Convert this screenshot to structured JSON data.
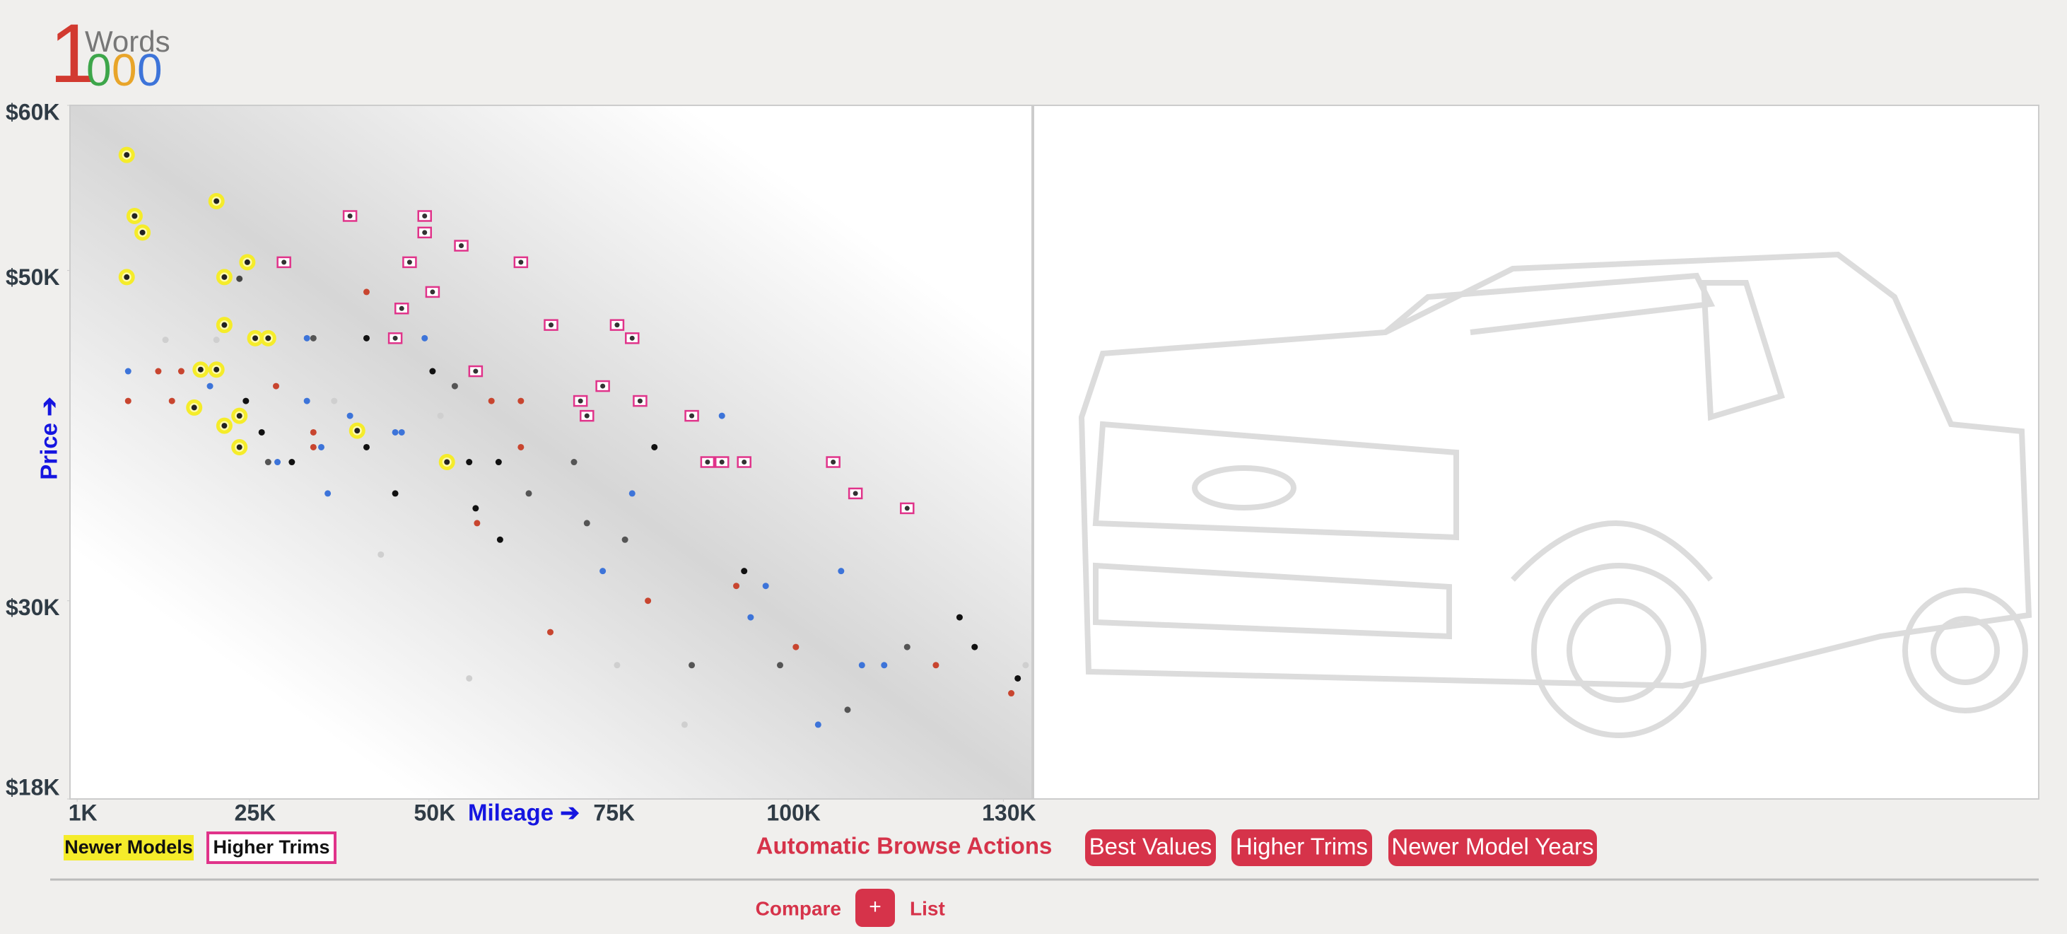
{
  "logo": {
    "one": "1",
    "word": "Words",
    "zeros": [
      "0",
      "0",
      "0"
    ]
  },
  "chart_data": {
    "type": "scatter",
    "x_label": "Mileage ➔",
    "y_label": "Price ➔",
    "xlim": [
      0,
      134000
    ],
    "ylim": [
      18000,
      60000
    ],
    "xticks": [
      {
        "value": 1000,
        "label": "1K"
      },
      {
        "value": 25000,
        "label": "25K"
      },
      {
        "value": 50000,
        "label": "50K"
      },
      {
        "value": 75000,
        "label": "75K"
      },
      {
        "value": 100000,
        "label": "100K"
      },
      {
        "value": 130000,
        "label": "130K"
      }
    ],
    "yticks": [
      {
        "value": 60000,
        "label": "$60K"
      },
      {
        "value": 50000,
        "label": "$50K"
      },
      {
        "value": 30000,
        "label": "$30K"
      },
      {
        "value": 18000,
        "label": "$18K"
      }
    ],
    "series": [
      {
        "x": [
          8100,
          8100,
          13300,
          12300,
          14200,
          15500,
          19500,
          20400,
          23600,
          24500,
          26700,
          28700,
          28900,
          27600,
          30900,
          33000,
          33900,
          33000,
          33900,
          33900,
          35000,
          36800,
          35900,
          39000,
          41300,
          41300,
          41300,
          43300,
          45300,
          46200,
          45300,
          49400,
          50500,
          51600,
          53600,
          55600,
          55600,
          56500,
          56700,
          58700,
          59700,
          59900,
          62800,
          62800,
          63900,
          66900,
          70200,
          72000,
          74200,
          76200,
          77300,
          78300,
          80500,
          81400,
          85600,
          86600,
          90800,
          92800,
          93900,
          94800,
          96900,
          98900,
          101100,
          104200,
          107400,
          108300,
          110300,
          113400,
          116600,
          120600,
          123900,
          126000,
          131100,
          132000,
          133100
        ],
        "values": [
          43900,
          42100,
          45800,
          43900,
          42100,
          43900,
          43000,
          45800,
          49500,
          42100,
          40200,
          43000,
          38400,
          38400,
          38400,
          45900,
          45900,
          42100,
          40200,
          39300,
          39300,
          42100,
          36500,
          41200,
          48700,
          45900,
          39300,
          32800,
          40200,
          40200,
          36500,
          45900,
          43900,
          41200,
          43000,
          38400,
          25300,
          35600,
          34700,
          42100,
          38400,
          33700,
          42100,
          39300,
          36500,
          28100,
          38400,
          34700,
          31800,
          26100,
          33700,
          36500,
          30000,
          39300,
          22500,
          26100,
          41200,
          30900,
          31800,
          29000,
          30900,
          26100,
          27200,
          22500,
          31800,
          23400,
          26100,
          26100,
          27200,
          26100,
          29000,
          27200,
          24400,
          25300,
          26100
        ],
        "colors": [
          "#3d74d9",
          "#c8452f",
          "#cfcfcf",
          "#c8452f",
          "#c8452f",
          "#c8452f",
          "#3d74d9",
          "#cfcfcf",
          "#444444",
          "#111111",
          "#111111",
          "#c8452f",
          "#3d74d9",
          "#555555",
          "#111111",
          "#3d74d9",
          "#555555",
          "#3d74d9",
          "#c8452f",
          "#c8452f",
          "#3d74d9",
          "#cfcfcf",
          "#3d74d9",
          "#3d74d9",
          "#c8452f",
          "#111111",
          "#111111",
          "#cfcfcf",
          "#3d74d9",
          "#3d74d9",
          "#111111",
          "#3d74d9",
          "#111111",
          "#cfcfcf",
          "#555555",
          "#111111",
          "#cfcfcf",
          "#111111",
          "#c8452f",
          "#c8452f",
          "#111111",
          "#111111",
          "#c8452f",
          "#c8452f",
          "#555555",
          "#c8452f",
          "#555555",
          "#555555",
          "#3d74d9",
          "#cfcfcf",
          "#555555",
          "#3d74d9",
          "#c8452f",
          "#111111",
          "#cfcfcf",
          "#555555",
          "#3d74d9",
          "#c8452f",
          "#111111",
          "#3d74d9",
          "#3d74d9",
          "#555555",
          "#c8452f",
          "#3d74d9",
          "#3d74d9",
          "#555555",
          "#3d74d9",
          "#3d74d9",
          "#555555",
          "#c8452f",
          "#111111",
          "#111111",
          "#c8452f",
          "#111111",
          "#cfcfcf"
        ]
      },
      {
        "name": "Newer Models",
        "color": "#f5ec2a",
        "x": [
          7900,
          9000,
          10100,
          7900,
          20400,
          21500,
          21500,
          24700,
          27600,
          25800,
          18200,
          20400,
          17300,
          21500,
          23600,
          40000,
          52500,
          23600
        ],
        "values": [
          57000,
          53300,
          52300,
          49600,
          54200,
          49600,
          46700,
          50500,
          45900,
          45900,
          44000,
          44000,
          41700,
          40600,
          41200,
          40300,
          38400,
          39300
        ]
      },
      {
        "name": "Higher Trims",
        "color": "#e0338a",
        "x": [
          39000,
          49400,
          49400,
          54500,
          29800,
          47300,
          62800,
          50500,
          46200,
          45300,
          67000,
          76200,
          78300,
          56500,
          74200,
          71100,
          79400,
          72000,
          86600,
          88800,
          90800,
          93900,
          106300,
          109400,
          116600
        ],
        "values": [
          53300,
          53300,
          52300,
          51500,
          50500,
          50500,
          50500,
          48700,
          47700,
          45900,
          46700,
          46700,
          45900,
          43900,
          43000,
          42100,
          42100,
          41200,
          41200,
          38400,
          38400,
          38400,
          38400,
          36500,
          35600
        ]
      }
    ]
  },
  "actions": {
    "label": "Automatic Browse Actions",
    "buttons": [
      "Best Values",
      "Higher Trims",
      "Newer Model Years"
    ]
  },
  "footer": {
    "compare": "Compare",
    "plus": "+",
    "list": "List"
  }
}
